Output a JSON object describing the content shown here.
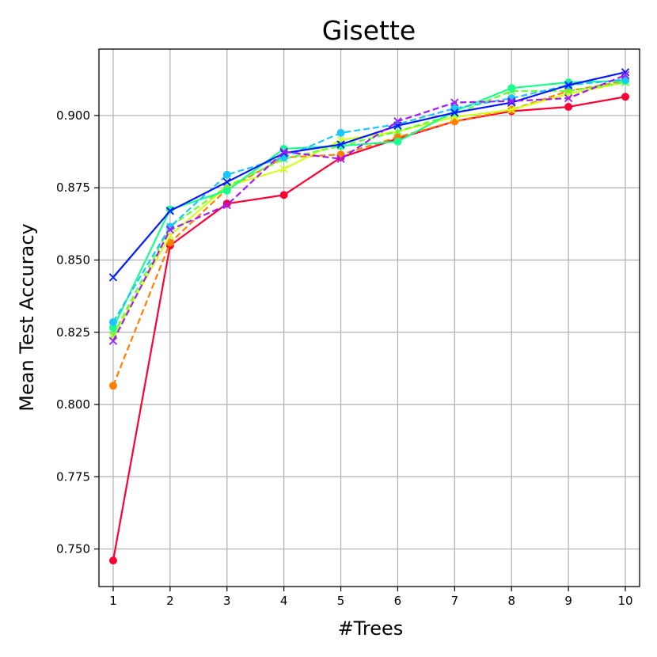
{
  "chart_data": {
    "type": "line",
    "title": "Gisette",
    "xlabel": "#Trees",
    "ylabel": "Mean Test Accuracy",
    "x": [
      1,
      2,
      3,
      4,
      5,
      6,
      7,
      8,
      9,
      10
    ],
    "xlim": [
      0.75,
      10.25
    ],
    "ylim": [
      0.737,
      0.923
    ],
    "xticks": [
      "1",
      "2",
      "3",
      "4",
      "5",
      "6",
      "7",
      "8",
      "9",
      "10"
    ],
    "yticks": [
      0.75,
      0.775,
      0.8,
      0.825,
      0.85,
      0.875,
      0.9
    ],
    "yticks_labels": [
      "0.750",
      "0.775",
      "0.800",
      "0.825",
      "0.850",
      "0.875",
      "0.900"
    ],
    "grid": true,
    "series": [
      {
        "color": "#ff0033",
        "linestyle": "solid",
        "marker": "circle",
        "values": [
          0.746,
          0.855,
          0.8695,
          0.8725,
          0.8855,
          0.892,
          0.898,
          0.9015,
          0.903,
          0.9065
        ]
      },
      {
        "color": "#ff8000",
        "linestyle": "dashed",
        "marker": "circle",
        "values": [
          0.8065,
          0.856,
          0.8745,
          0.8855,
          0.8865,
          0.8925,
          0.898,
          0.902,
          0.9085,
          0.912
        ]
      },
      {
        "color": "#d4ff1a",
        "linestyle": "solid",
        "marker": "x",
        "values": [
          0.8235,
          0.8585,
          0.8755,
          0.8815,
          0.8915,
          0.8945,
          0.8995,
          0.902,
          0.9075,
          0.9115
        ]
      },
      {
        "color": "#66ff33",
        "linestyle": "dashed",
        "marker": "x",
        "values": [
          0.824,
          0.8615,
          0.8755,
          0.885,
          0.8895,
          0.8945,
          0.9005,
          0.9085,
          0.9085,
          0.9115
        ]
      },
      {
        "color": "#1aff8c",
        "linestyle": "solid",
        "marker": "circle",
        "values": [
          0.8265,
          0.8675,
          0.874,
          0.8885,
          0.8895,
          0.891,
          0.9015,
          0.9095,
          0.9115,
          0.912
        ]
      },
      {
        "color": "#1ac6ff",
        "linestyle": "dashed",
        "marker": "circle",
        "values": [
          0.8285,
          0.8615,
          0.8795,
          0.8855,
          0.894,
          0.897,
          0.9025,
          0.906,
          0.9105,
          0.9125
        ]
      },
      {
        "color": "#0019ff",
        "linestyle": "solid",
        "marker": "x",
        "values": [
          0.844,
          0.867,
          0.877,
          0.887,
          0.89,
          0.8965,
          0.901,
          0.9045,
          0.9105,
          0.915
        ]
      },
      {
        "color": "#a31aff",
        "linestyle": "dashed",
        "marker": "x",
        "values": [
          0.822,
          0.8605,
          0.869,
          0.8875,
          0.885,
          0.898,
          0.9045,
          0.905,
          0.906,
          0.914
        ]
      }
    ]
  }
}
